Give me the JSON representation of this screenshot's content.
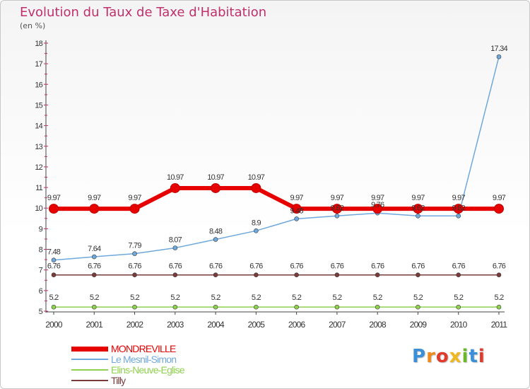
{
  "title": "Evolution du Taux de Taxe d'Habitation",
  "subtitle": "(en %)",
  "logo": {
    "text": "Proxiti",
    "colors": [
      "#3a8fd8",
      "#f08a1c",
      "#e23a2a",
      "#f0b81c",
      "#6ab82a",
      "#3a8fd8",
      "#e23a2a"
    ]
  },
  "chart_data": {
    "type": "line",
    "x": [
      "2000",
      "2001",
      "2002",
      "2003",
      "2004",
      "2005",
      "2006",
      "2007",
      "2008",
      "2009",
      "2010",
      "2011"
    ],
    "ylim": [
      5,
      18
    ],
    "yticks": [
      "5",
      "6",
      "7",
      "8",
      "9",
      "10",
      "11",
      "12",
      "13",
      "14",
      "15",
      "16",
      "17",
      "18"
    ],
    "grid": false,
    "legend": "bottom-left",
    "series": [
      {
        "name": "MONDREVILLE",
        "color": "#e60000",
        "values": [
          9.97,
          9.97,
          9.97,
          10.97,
          10.97,
          10.97,
          9.97,
          9.97,
          9.97,
          9.97,
          9.97,
          9.97
        ],
        "labels": [
          "9.97",
          "9.97",
          "9.97",
          "10.97",
          "10.97",
          "10.97",
          "9.97",
          "9.97",
          "9.97",
          "9.97",
          "9.97",
          "9.97"
        ]
      },
      {
        "name": "Le Mesnil-Simon",
        "color": "#6fa8dc",
        "values": [
          7.48,
          7.64,
          7.79,
          8.07,
          8.48,
          8.9,
          9.48,
          9.62,
          9.76,
          9.62,
          9.62,
          17.34
        ],
        "labels": [
          "7.48",
          "7.64",
          "7.79",
          "8.07",
          "8.48",
          "8.9",
          "9.48",
          "9.62",
          "9.76",
          "9.62",
          "9.62",
          "17.34"
        ]
      },
      {
        "name": "Elins-Neuve-Eglise",
        "color": "#8fd14f",
        "values": [
          5.2,
          5.2,
          5.2,
          5.2,
          5.2,
          5.2,
          5.2,
          5.2,
          5.2,
          5.2,
          5.2,
          5.2
        ],
        "labels": [
          "5.2",
          "5.2",
          "5.2",
          "5.2",
          "5.2",
          "5.2",
          "5.2",
          "5.2",
          "5.2",
          "5.2",
          "5.2",
          "5.2"
        ]
      },
      {
        "name": "Tilly",
        "color": "#7a3b3b",
        "values": [
          6.76,
          6.76,
          6.76,
          6.76,
          6.76,
          6.76,
          6.76,
          6.76,
          6.76,
          6.76,
          6.76,
          6.76
        ],
        "labels": [
          "6.76",
          "6.76",
          "6.76",
          "6.76",
          "6.76",
          "6.76",
          "6.76",
          "6.76",
          "6.76",
          "6.76",
          "6.76",
          "6.76"
        ]
      }
    ]
  }
}
